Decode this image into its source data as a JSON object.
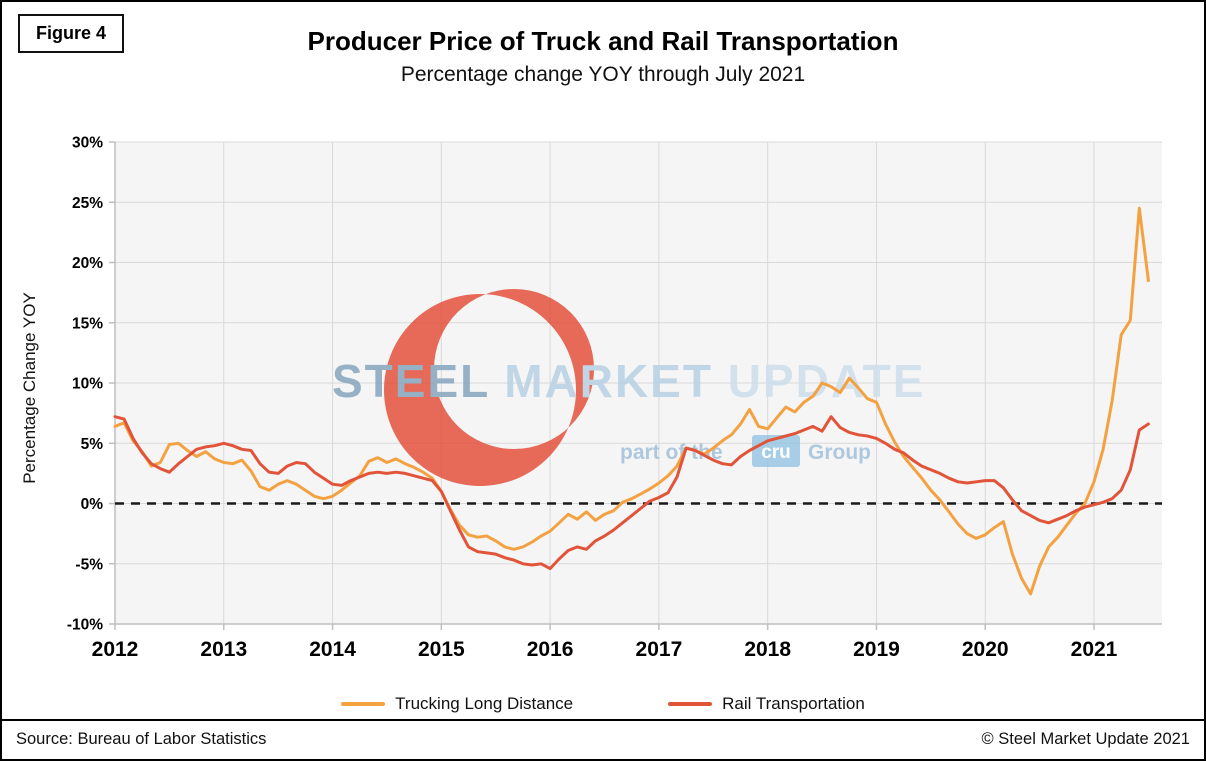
{
  "page": {
    "figure_label": "Figure 4",
    "title": "Producer Price of Truck and Rail Transportation",
    "subtitle": "Percentage change YOY through July 2021",
    "source": "Source: Bureau of Labor Statistics",
    "copyright": "© Steel Market Update 2021"
  },
  "watermark": {
    "word1": "STEEL",
    "word2": "MARKET",
    "word3": "UPDATE",
    "line2_prefix": "part of the",
    "line2_box": "cru",
    "line2_suffix": "Group",
    "crescent_color": "#E2452F",
    "word1_color": "#8CA9C0",
    "word2_color": "#BBD2E4",
    "word3_color": "#CFDfEC",
    "line2_color": "#A6C4DC",
    "box_color": "#8FC2E2"
  },
  "legend": [
    {
      "label": "Trucking Long Distance",
      "color": "#F4A142"
    },
    {
      "label": "Rail Transportation",
      "color": "#E25439"
    }
  ],
  "chart_data": {
    "type": "line",
    "title": "Producer Price of Truck and Rail Transportation",
    "subtitle": "Percentage change YOY through July 2021",
    "xlabel": "",
    "ylabel": "Percentage Change YOY",
    "ylim": [
      -10,
      30
    ],
    "grid": true,
    "legend_position": "bottom",
    "zero_line_dashed": true,
    "x_start": "2012-01",
    "x_end": "2021-07",
    "x_frequency": "monthly",
    "y_ticks": [
      {
        "label": "30%",
        "value": 30
      },
      {
        "label": "25%",
        "value": 25
      },
      {
        "label": "20%",
        "value": 20
      },
      {
        "label": "15%",
        "value": 15
      },
      {
        "label": "10%",
        "value": 10
      },
      {
        "label": "5%",
        "value": 5
      },
      {
        "label": "0%",
        "value": 0
      },
      {
        "label": "-5%",
        "value": -5
      },
      {
        "label": "-10%",
        "value": -10
      }
    ],
    "x_ticks": [
      {
        "label": "2012",
        "month_index": 0
      },
      {
        "label": "2013",
        "month_index": 12
      },
      {
        "label": "2014",
        "month_index": 24
      },
      {
        "label": "2015",
        "month_index": 36
      },
      {
        "label": "2016",
        "month_index": 48
      },
      {
        "label": "2017",
        "month_index": 60
      },
      {
        "label": "2018",
        "month_index": 72
      },
      {
        "label": "2019",
        "month_index": 84
      },
      {
        "label": "2020",
        "month_index": 96
      },
      {
        "label": "2021",
        "month_index": 108
      }
    ],
    "series": [
      {
        "name": "Trucking Long Distance",
        "color": "#F4A142",
        "values": [
          6.4,
          6.7,
          5.2,
          4.3,
          3.1,
          3.4,
          4.9,
          5.0,
          4.4,
          3.9,
          4.3,
          3.7,
          3.4,
          3.3,
          3.6,
          2.7,
          1.4,
          1.1,
          1.6,
          1.9,
          1.6,
          1.1,
          0.6,
          0.4,
          0.6,
          1.1,
          1.7,
          2.3,
          3.5,
          3.8,
          3.4,
          3.7,
          3.3,
          3.0,
          2.6,
          2.1,
          1.0,
          -0.5,
          -1.8,
          -2.6,
          -2.8,
          -2.7,
          -3.1,
          -3.6,
          -3.8,
          -3.6,
          -3.2,
          -2.7,
          -2.3,
          -1.6,
          -0.9,
          -1.3,
          -0.7,
          -1.4,
          -0.9,
          -0.6,
          0.1,
          0.4,
          0.8,
          1.2,
          1.7,
          2.3,
          3.1,
          4.6,
          4.4,
          4.1,
          4.6,
          5.2,
          5.7,
          6.6,
          7.8,
          6.4,
          6.2,
          7.1,
          8.0,
          7.6,
          8.4,
          8.9,
          10.0,
          9.7,
          9.2,
          10.4,
          9.6,
          8.7,
          8.4,
          6.6,
          5.1,
          3.9,
          3.0,
          2.1,
          1.1,
          0.3,
          -0.7,
          -1.7,
          -2.5,
          -2.9,
          -2.6,
          -2.0,
          -1.5,
          -4.2,
          -6.2,
          -7.5,
          -5.2,
          -3.6,
          -2.8,
          -1.8,
          -0.8,
          0.0,
          1.8,
          4.5,
          8.5,
          14.0,
          15.2,
          24.5,
          18.5
        ]
      },
      {
        "name": "Rail Transportation",
        "color": "#E25439",
        "values": [
          7.2,
          7.0,
          5.4,
          4.2,
          3.3,
          2.9,
          2.6,
          3.3,
          3.9,
          4.5,
          4.7,
          4.8,
          5.0,
          4.8,
          4.5,
          4.4,
          3.3,
          2.6,
          2.5,
          3.1,
          3.4,
          3.3,
          2.6,
          2.1,
          1.6,
          1.5,
          1.9,
          2.2,
          2.5,
          2.6,
          2.5,
          2.6,
          2.5,
          2.3,
          2.1,
          1.9,
          1.0,
          -0.6,
          -2.2,
          -3.6,
          -4.0,
          -4.1,
          -4.2,
          -4.5,
          -4.7,
          -5.0,
          -5.1,
          -5.0,
          -5.4,
          -4.6,
          -3.9,
          -3.6,
          -3.8,
          -3.1,
          -2.7,
          -2.2,
          -1.6,
          -1.0,
          -0.4,
          0.2,
          0.5,
          0.9,
          2.2,
          4.6,
          4.4,
          4.0,
          3.6,
          3.3,
          3.2,
          3.9,
          4.4,
          4.8,
          5.2,
          5.4,
          5.6,
          5.8,
          6.1,
          6.4,
          6.0,
          7.2,
          6.3,
          5.9,
          5.7,
          5.6,
          5.4,
          5.0,
          4.5,
          4.2,
          3.6,
          3.1,
          2.8,
          2.5,
          2.1,
          1.8,
          1.7,
          1.8,
          1.9,
          1.9,
          1.3,
          0.3,
          -0.6,
          -1.0,
          -1.4,
          -1.6,
          -1.3,
          -1.0,
          -0.6,
          -0.3,
          -0.1,
          0.1,
          0.4,
          1.1,
          2.8,
          6.1,
          6.6
        ]
      }
    ]
  }
}
